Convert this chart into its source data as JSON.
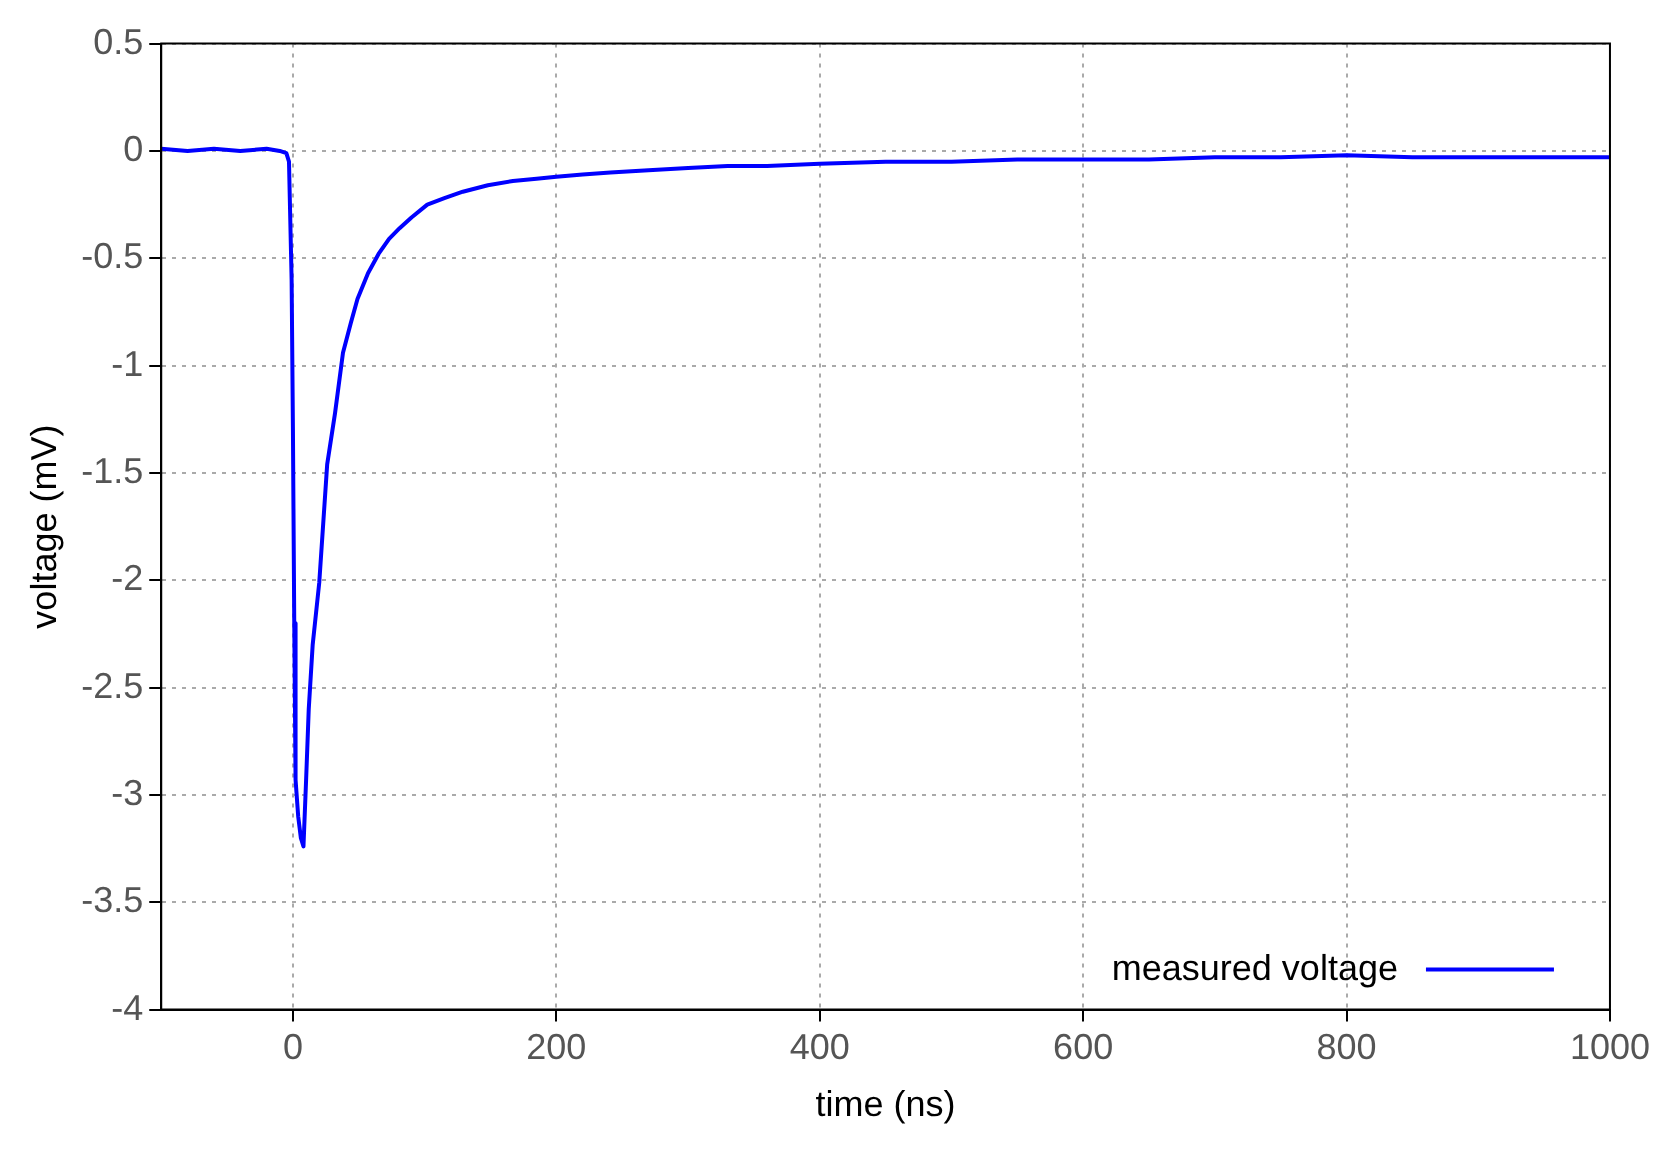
{
  "chart_data": {
    "type": "line",
    "xlabel": "time (ns)",
    "ylabel": "voltage (mV)",
    "xlim": [
      -100,
      1000
    ],
    "ylim": [
      -4,
      0.5
    ],
    "xticks": [
      0,
      200,
      400,
      600,
      800,
      1000
    ],
    "yticks": [
      0.5,
      0,
      -0.5,
      -1,
      -1.5,
      -2,
      -2.5,
      -3,
      -3.5,
      -4
    ],
    "grid": true,
    "legend": "bottom right",
    "marker": "none",
    "line_style": "solid",
    "series": [
      {
        "name": "measured voltage",
        "color": "#0000ff",
        "x": [
          -100,
          -80,
          -60,
          -40,
          -20,
          -10,
          -5,
          -3,
          -1,
          0,
          1,
          2,
          4,
          6,
          8,
          10,
          12,
          15,
          20,
          26,
          32,
          38,
          44,
          49,
          57,
          65,
          73,
          81,
          90,
          102,
          115,
          129,
          148,
          167,
          185,
          200,
          220,
          241,
          270,
          300,
          330,
          360,
          400,
          450,
          500,
          550,
          600,
          650,
          700,
          750,
          800,
          850,
          900,
          950,
          1000
        ],
        "values": [
          0.01,
          0.0,
          0.01,
          0.0,
          0.01,
          0.0,
          -0.01,
          -0.05,
          -0.6,
          -1.3,
          -2.2,
          -2.93,
          -3.1,
          -3.2,
          -3.24,
          -2.93,
          -2.6,
          -2.3,
          -2.01,
          -1.46,
          -1.22,
          -0.94,
          -0.8,
          -0.69,
          -0.57,
          -0.48,
          -0.41,
          -0.36,
          -0.31,
          -0.25,
          -0.22,
          -0.19,
          -0.16,
          -0.14,
          -0.13,
          -0.12,
          -0.11,
          -0.1,
          -0.09,
          -0.08,
          -0.07,
          -0.07,
          -0.06,
          -0.05,
          -0.05,
          -0.04,
          -0.04,
          -0.04,
          -0.03,
          -0.03,
          -0.02,
          -0.03,
          -0.03,
          -0.03,
          -0.03
        ]
      }
    ]
  }
}
